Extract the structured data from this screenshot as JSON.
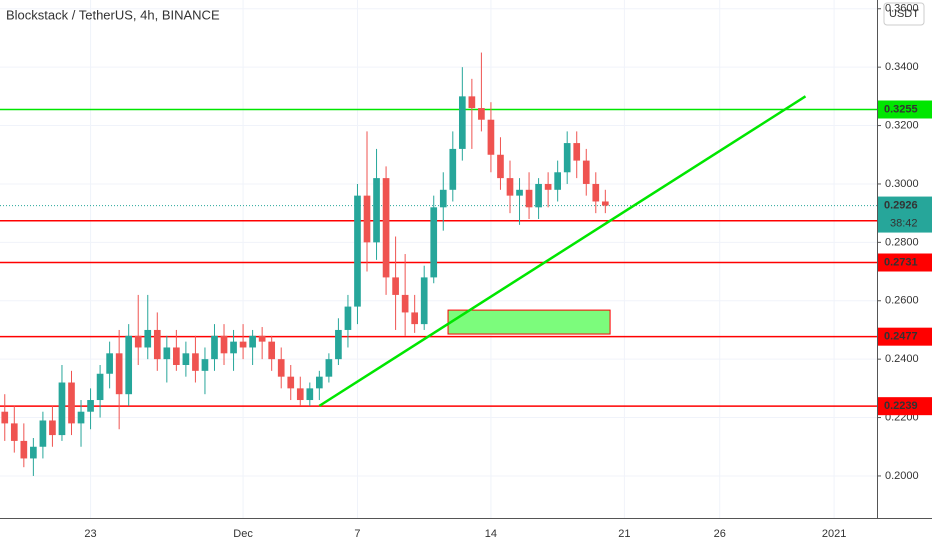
{
  "chart_data": {
    "type": "candlestick",
    "title": "Blockstack / TetherUS, 4h, BINANCE",
    "currency": "USDT",
    "categories": [
      null,
      null,
      null,
      null,
      null,
      null,
      null,
      null,
      null,
      "23",
      null,
      null,
      null,
      null,
      null,
      null,
      null,
      null,
      null,
      null,
      null,
      null,
      null,
      null,
      null,
      "Dec",
      null,
      null,
      null,
      null,
      null,
      null,
      null,
      null,
      null,
      null,
      null,
      "7",
      null,
      null,
      null,
      null,
      null,
      null,
      null,
      null,
      null,
      null,
      null,
      null,
      null,
      "14",
      null,
      null,
      null,
      null,
      null,
      null,
      null,
      null,
      null,
      null,
      null,
      null,
      null,
      "21",
      null,
      null,
      null,
      null,
      null,
      null,
      null,
      null,
      null,
      "26",
      null,
      null,
      null,
      null,
      null,
      null,
      null,
      null,
      null,
      null,
      null,
      "2021",
      null,
      null,
      null,
      null
    ],
    "open": [
      0.222,
      0.218,
      0.212,
      0.206,
      0.21,
      0.219,
      0.214,
      0.232,
      0.218,
      0.222,
      0.226,
      0.235,
      0.242,
      0.228,
      0.248,
      0.244,
      0.25,
      0.24,
      0.244,
      0.238,
      0.242,
      0.236,
      0.24,
      0.248,
      0.242,
      0.246,
      0.244,
      0.248,
      0.246,
      0.24,
      0.234,
      0.23,
      0.226,
      0.23,
      0.234,
      0.24,
      0.25,
      0.258,
      0.296,
      0.28,
      0.302,
      0.268,
      0.262,
      0.256,
      0.252,
      0.268,
      0.292,
      0.298,
      0.312,
      0.33,
      0.326,
      0.322,
      0.31,
      0.302,
      0.296,
      0.298,
      0.292,
      0.3,
      0.298,
      0.304,
      0.314,
      0.308,
      0.3,
      0.294,
      null,
      null,
      null,
      null,
      null,
      null,
      null,
      null,
      null,
      null,
      null,
      null,
      null,
      null,
      null,
      null,
      null,
      null,
      null,
      null,
      null,
      null,
      null,
      null,
      null,
      null,
      null,
      null
    ],
    "high": [
      0.228,
      0.224,
      0.218,
      0.213,
      0.222,
      0.224,
      0.238,
      0.236,
      0.226,
      0.23,
      0.238,
      0.246,
      0.25,
      0.252,
      0.262,
      0.262,
      0.256,
      0.248,
      0.25,
      0.246,
      0.248,
      0.244,
      0.252,
      0.252,
      0.25,
      0.252,
      0.25,
      0.251,
      0.248,
      0.244,
      0.238,
      0.234,
      0.232,
      0.236,
      0.242,
      0.254,
      0.262,
      0.3,
      0.318,
      0.312,
      0.306,
      0.282,
      0.276,
      0.262,
      0.272,
      0.296,
      0.304,
      0.318,
      0.34,
      0.336,
      0.345,
      0.328,
      0.316,
      0.308,
      0.302,
      0.304,
      0.302,
      0.304,
      0.308,
      0.318,
      0.318,
      0.312,
      0.304,
      0.298,
      null,
      null,
      null,
      null,
      null,
      null,
      null,
      null,
      null,
      null,
      null,
      null,
      null,
      null,
      null,
      null,
      null,
      null,
      null,
      null,
      null,
      null,
      null,
      null,
      null,
      null,
      null,
      null
    ],
    "low": [
      0.212,
      0.208,
      0.203,
      0.2,
      0.206,
      0.21,
      0.212,
      0.214,
      0.21,
      0.216,
      0.22,
      0.23,
      0.216,
      0.224,
      0.238,
      0.24,
      0.236,
      0.232,
      0.236,
      0.234,
      0.232,
      0.228,
      0.236,
      0.238,
      0.236,
      0.24,
      0.238,
      0.24,
      0.236,
      0.23,
      0.226,
      0.224,
      0.224,
      0.226,
      0.232,
      0.238,
      0.244,
      0.252,
      0.27,
      0.274,
      0.262,
      0.25,
      0.248,
      0.249,
      0.25,
      0.266,
      0.284,
      0.294,
      0.308,
      0.312,
      0.318,
      0.304,
      0.298,
      0.29,
      0.286,
      0.288,
      0.288,
      0.292,
      0.294,
      0.3,
      0.302,
      0.296,
      0.29,
      0.29,
      null,
      null,
      null,
      null,
      null,
      null,
      null,
      null,
      null,
      null,
      null,
      null,
      null,
      null,
      null,
      null,
      null,
      null,
      null,
      null,
      null,
      null,
      null,
      null,
      null,
      null,
      null,
      null
    ],
    "close": [
      0.218,
      0.212,
      0.206,
      0.21,
      0.219,
      0.214,
      0.232,
      0.218,
      0.222,
      0.226,
      0.235,
      0.242,
      0.228,
      0.248,
      0.244,
      0.25,
      0.24,
      0.244,
      0.238,
      0.242,
      0.236,
      0.24,
      0.248,
      0.242,
      0.246,
      0.244,
      0.248,
      0.246,
      0.24,
      0.234,
      0.23,
      0.226,
      0.23,
      0.234,
      0.24,
      0.25,
      0.258,
      0.296,
      0.28,
      0.302,
      0.268,
      0.262,
      0.256,
      0.252,
      0.268,
      0.292,
      0.298,
      0.312,
      0.33,
      0.326,
      0.322,
      0.31,
      0.302,
      0.296,
      0.298,
      0.292,
      0.3,
      0.298,
      0.304,
      0.314,
      0.308,
      0.3,
      0.294,
      0.2926,
      null,
      null,
      null,
      null,
      null,
      null,
      null,
      null,
      null,
      null,
      null,
      null,
      null,
      null,
      null,
      null,
      null,
      null,
      null,
      null,
      null,
      null,
      null,
      null,
      null,
      null,
      null,
      null
    ],
    "up_color": "#26a69a",
    "down_color": "#ef5350",
    "ylim": [
      0.1856,
      0.363
    ],
    "yticks": [
      {
        "value": 0.2,
        "label": "0.2000"
      },
      {
        "value": 0.22,
        "label": "0.2200"
      },
      {
        "value": 0.24,
        "label": "0.2400"
      },
      {
        "value": 0.26,
        "label": "0.2600"
      },
      {
        "value": 0.28,
        "label": "0.2800"
      },
      {
        "value": 0.3,
        "label": "0.3000"
      },
      {
        "value": 0.32,
        "label": "0.3200"
      },
      {
        "value": 0.34,
        "label": "0.3400"
      },
      {
        "value": 0.36,
        "label": "0.3600"
      }
    ],
    "grid": true,
    "levels": [
      {
        "value": 0.3255,
        "color": "#00e600"
      },
      {
        "value": 0.2874,
        "color": "#ff0000"
      },
      {
        "value": 0.2731,
        "color": "#ff0000"
      },
      {
        "value": 0.2477,
        "color": "#ff0000"
      },
      {
        "value": 0.2239,
        "color": "#ff0000"
      }
    ],
    "last_price": {
      "value": 0.2926,
      "color": "#26a69a",
      "countdown": "38:42"
    },
    "trend_line": {
      "color": "#00e600",
      "start_index": 33,
      "start": 0.224,
      "end_index": 84,
      "end": 0.33
    },
    "zone": {
      "color": "#7cfc7c",
      "border": "#ff0000",
      "start_index": 47,
      "end_index": 64,
      "low": 0.2486,
      "high": 0.2568
    }
  }
}
